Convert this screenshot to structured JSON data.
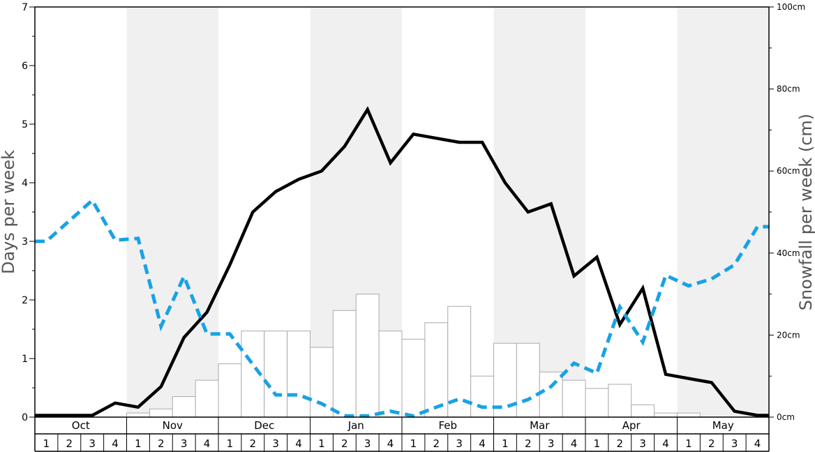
{
  "chart_data": {
    "type": "bar+line",
    "ylabel_left": "Days per week",
    "ylabel_right": "Snowfall per week (cm)",
    "ylim_left": [
      0,
      7
    ],
    "yticks_left": [
      "0",
      "1",
      "2",
      "3",
      "4",
      "5",
      "6",
      "7"
    ],
    "ylim_right": [
      0,
      100
    ],
    "yticks_right": [
      "0cm",
      "20cm",
      "40cm",
      "60cm",
      "80cm",
      "100cm"
    ],
    "months": [
      "Oct",
      "Nov",
      "Dec",
      "Jan",
      "Feb",
      "Mar",
      "Apr",
      "May"
    ],
    "weeks": [
      "1",
      "2",
      "3",
      "4"
    ],
    "month_shading": [
      false,
      true,
      false,
      true,
      false,
      true,
      false,
      true
    ],
    "colors": {
      "line_solid": "#000000",
      "line_dashed": "#18a2e6",
      "bar_fill": "#ffffff",
      "bar_stroke": "#aaaaaa",
      "shade": "#f0f0f0"
    },
    "series": [
      {
        "kind": "bars",
        "axis": "right",
        "values": [
          0,
          0,
          0,
          0,
          1,
          2,
          5,
          9,
          13,
          21,
          21,
          21,
          17,
          26,
          30,
          21,
          19,
          23,
          27,
          10,
          18,
          18,
          11,
          9,
          7,
          8,
          3,
          1,
          1,
          0,
          0,
          0
        ]
      },
      {
        "kind": "line",
        "style": "solid",
        "axis": "left",
        "values": [
          0.03,
          0.03,
          0.03,
          0.24,
          0.17,
          0.52,
          1.36,
          1.79,
          2.6,
          3.5,
          3.85,
          4.06,
          4.2,
          4.62,
          5.25,
          4.34,
          4.83,
          4.76,
          4.69,
          4.69,
          4.0,
          3.5,
          3.64,
          2.41,
          2.73,
          1.58,
          2.2,
          0.73,
          0.66,
          0.59,
          0.1,
          0.03
        ]
      },
      {
        "kind": "line",
        "style": "dashed",
        "axis": "left",
        "values": [
          3.0,
          3.35,
          3.7,
          3.02,
          3.05,
          1.55,
          2.4,
          1.42,
          1.42,
          0.9,
          0.38,
          0.38,
          0.23,
          0.02,
          0.02,
          0.1,
          0.02,
          0.17,
          0.31,
          0.17,
          0.17,
          0.3,
          0.52,
          0.92,
          0.75,
          1.88,
          1.28,
          2.42,
          2.24,
          2.36,
          2.6,
          3.25
        ]
      }
    ]
  }
}
